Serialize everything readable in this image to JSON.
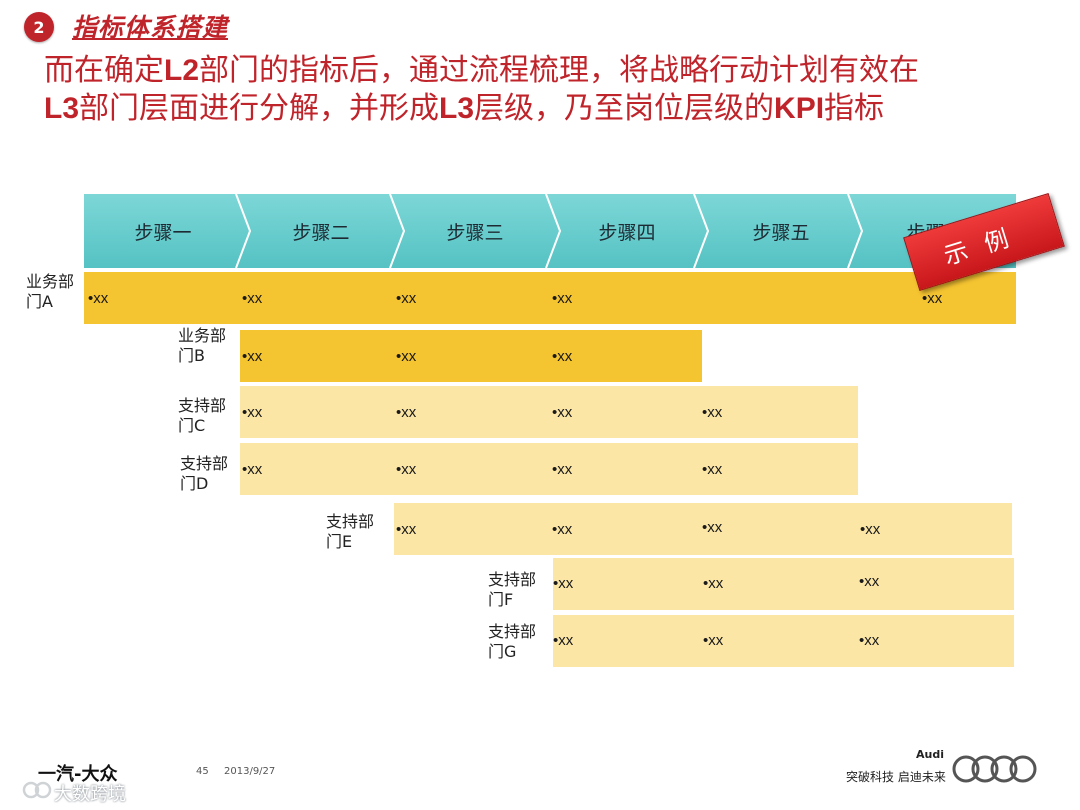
{
  "header": {
    "badge": "2",
    "section_title": "指标体系搭建",
    "line1_a": "而在确定",
    "line1_b": "L2",
    "line1_c": "部门的指标后，通过流程梳理，将战略行动计划有效在",
    "line2_a": "L3",
    "line2_b": "部门层面进行分解，并形成",
    "line2_c": "L3",
    "line2_d": "层级，乃至岗位层级的",
    "line2_e": "KPI",
    "line2_f": "指标"
  },
  "steps": [
    "步骤一",
    "步骤二",
    "步骤三",
    "步骤四",
    "步骤五",
    "步骤六"
  ],
  "stamp": "示例",
  "rows": [
    {
      "dept_line1": "业务部",
      "dept_line2": "门A",
      "cells": [
        "•xx",
        "•xx",
        "•xx",
        "•xx",
        "•xx"
      ]
    },
    {
      "dept_line1": "业务部",
      "dept_line2": "门B",
      "cells": [
        "•xx",
        "•xx",
        "•xx"
      ]
    },
    {
      "dept_line1": "支持部",
      "dept_line2": "门C",
      "cells": [
        "•xx",
        "•xx",
        "•xx",
        "•xx"
      ]
    },
    {
      "dept_line1": "支持部",
      "dept_line2": "门D",
      "cells": [
        "•xx",
        "•xx",
        "•xx",
        "•xx"
      ]
    },
    {
      "dept_line1": "支持部",
      "dept_line2": "门E",
      "cells": [
        "•xx",
        "•xx",
        "•xx",
        "•xx"
      ]
    },
    {
      "dept_line1": "支持部",
      "dept_line2": "门F",
      "cells": [
        "•xx",
        "•xx",
        "•xx"
      ]
    },
    {
      "dept_line1": "支持部",
      "dept_line2": "门G",
      "cells": [
        "•xx",
        "•xx",
        "•xx"
      ]
    }
  ],
  "footer": {
    "company": "一汽-大众",
    "page": "45",
    "date": "2013/9/27",
    "brand": "Audi",
    "slogan": "突破科技 启迪未来",
    "watermark": "大数跨境"
  },
  "colors": {
    "accent_red": "#c0242b",
    "step_teal": "#6ccfcf",
    "row_dark": "#f5c431",
    "row_light": "#fbe6a6"
  }
}
